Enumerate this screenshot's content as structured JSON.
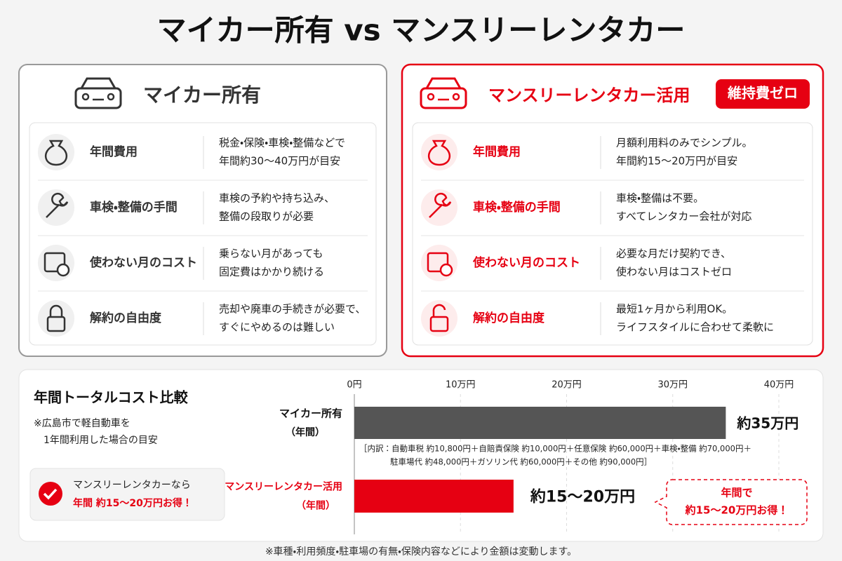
{
  "title": "マイカー所有 vs マンスリーレンタカー",
  "panels": [
    {
      "heading": "マイカー所有",
      "rows": [
        {
          "label": "年間費用",
          "desc": [
            "税金・保険・車検・整備などで",
            "年間約30〜40万円が目安"
          ]
        },
        {
          "label": "車検・整備の手間",
          "desc": [
            "車検の予約や持ち込み、",
            "整備の段取りが必要"
          ]
        },
        {
          "label": "使わない月のコスト",
          "desc": [
            "乗らない月があっても",
            "固定費はかかり続ける"
          ]
        },
        {
          "label": "解約の自由度",
          "desc": [
            "売却や廃車の手続きが必要で、",
            "すぐにやめるのは難しい"
          ]
        }
      ]
    },
    {
      "heading": "マンスリーレンタカー活用",
      "badge": "維持費ゼロ",
      "rows": [
        {
          "label": "年間費用",
          "desc": [
            "月額利用料のみでシンプル。",
            "年間約15〜20万円が目安"
          ]
        },
        {
          "label": "車検・整備の手間",
          "desc": [
            "車検・整備は不要。",
            "すべてレンタカー会社が対応"
          ]
        },
        {
          "label": "使わない月のコスト",
          "desc": [
            "必要な月だけ契約でき、",
            "使わない月はコストゼロ"
          ]
        },
        {
          "label": "解約の自由度",
          "desc": [
            "最短1ヶ月から利用OK。",
            "ライフスタイルに合わせて柔軟に"
          ]
        }
      ]
    }
  ],
  "summary": {
    "title": "年間トータルコスト比較",
    "notes": [
      "※広島市で軽自動車を",
      "1年間利用した場合の目安"
    ],
    "callout": [
      "マンスリーレンタカーなら",
      "年間 約15〜20万円お得！"
    ]
  },
  "chart_data": {
    "type": "bar",
    "orientation": "horizontal",
    "categories": [
      "マイカー所有",
      "マンスリーレンタカー活用"
    ],
    "category_sublabels": [
      "（年間）",
      "（年間）"
    ],
    "values": [
      35,
      15
    ],
    "value_labels": [
      "約35万円",
      "約15〜20万円"
    ],
    "colors": [
      "#555555",
      "#e60012"
    ],
    "xlim": [
      0,
      40
    ],
    "xticks": [
      {
        "value": 0,
        "label": "0円"
      },
      {
        "value": 10,
        "label": "10万円"
      },
      {
        "value": 20,
        "label": "20万円"
      },
      {
        "value": 30,
        "label": "30万円"
      },
      {
        "value": 40,
        "label": "40万円"
      }
    ],
    "grid": true,
    "breakdown": [
      "［内訳：自動車税 約10,800円＋自賠責保険 約10,000円＋任意保険 約60,000円＋車検・整備 約70,000円＋",
      "駐車場代 約48,000円＋ガソリン代 約60,000円＋その他 約90,000円］"
    ],
    "annotation": [
      "年間で",
      "約15〜20万円お得！"
    ]
  },
  "footnote": "※車種・利用頻度・駐車場の有無・保険内容などにより金額は変動します。"
}
